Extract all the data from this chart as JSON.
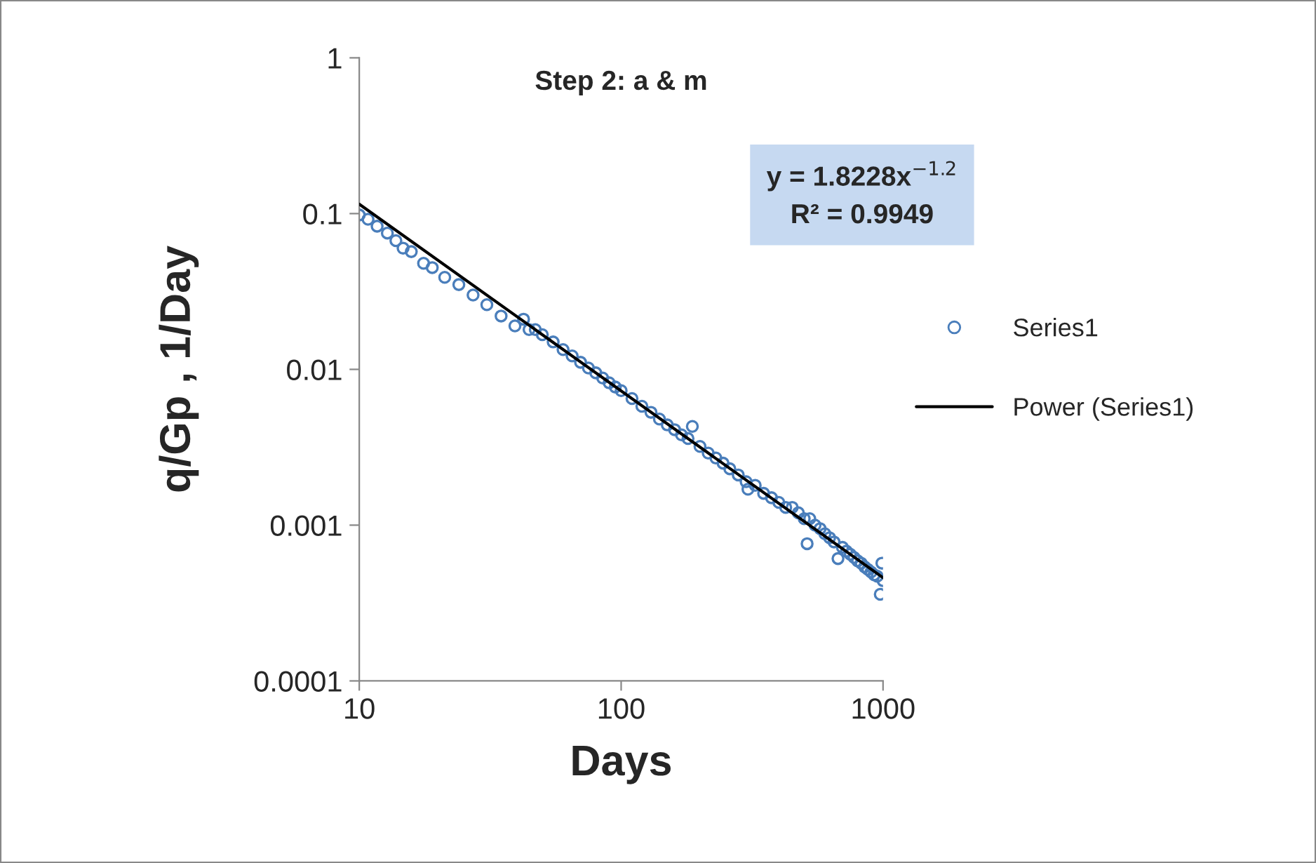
{
  "chart_data": {
    "type": "scatter",
    "title": "Step 2: a & m",
    "xlabel": "Days",
    "ylabel": "q/Gp , 1/Day",
    "log": "xy",
    "xlim": [
      10,
      1000
    ],
    "ylim": [
      0.0001,
      1
    ],
    "xticks": [
      10,
      100,
      1000
    ],
    "yticks": [
      0.0001,
      0.001,
      0.01,
      0.1,
      1
    ],
    "grid": false,
    "legend": "right",
    "annotations": [
      "y = 1.8228x$^{−1.2}$\nR² = 0.9949"
    ],
    "series": [
      {
        "name": "Series1",
        "marker": "circle",
        "color": "#4a7ebb",
        "x": [
          10,
          10.8,
          11.7,
          12.8,
          13.8,
          14.7,
          15.8,
          17.6,
          19,
          21.2,
          24,
          27.2,
          30.7,
          34.8,
          39.3,
          42.4,
          44.5,
          47,
          50,
          55,
          60,
          65,
          70,
          75,
          80,
          85,
          90,
          95,
          100,
          110,
          120,
          130,
          140,
          150,
          160,
          170,
          180,
          187,
          200,
          215,
          230,
          245,
          260,
          280,
          300,
          305,
          325,
          350,
          375,
          400,
          425,
          450,
          475,
          500,
          513,
          525,
          550,
          575,
          600,
          625,
          650,
          673,
          700,
          725,
          750,
          775,
          800,
          825,
          850,
          875,
          900,
          925,
          950,
          976,
          990,
          1000
        ],
        "values": [
          0.098,
          0.092,
          0.083,
          0.075,
          0.067,
          0.06,
          0.057,
          0.048,
          0.045,
          0.039,
          0.035,
          0.03,
          0.026,
          0.022,
          0.019,
          0.021,
          0.018,
          0.018,
          0.0167,
          0.015,
          0.0134,
          0.0122,
          0.0111,
          0.0102,
          0.0095,
          0.0088,
          0.0082,
          0.0077,
          0.0073,
          0.0065,
          0.0058,
          0.0053,
          0.0048,
          0.0044,
          0.0041,
          0.0038,
          0.0036,
          0.0043,
          0.0032,
          0.0029,
          0.0027,
          0.0025,
          0.0023,
          0.0021,
          0.0019,
          0.0017,
          0.0018,
          0.0016,
          0.0015,
          0.0014,
          0.0013,
          0.0013,
          0.0012,
          0.0011,
          0.00076,
          0.0011,
          0.001,
          0.00095,
          0.00088,
          0.00083,
          0.00078,
          0.00061,
          0.00072,
          0.00068,
          0.00065,
          0.00062,
          0.00059,
          0.00057,
          0.00054,
          0.00052,
          0.0005,
          0.00048,
          0.00047,
          0.00036,
          0.00057,
          0.00044
        ]
      },
      {
        "name": "Power (Series1)",
        "type": "line",
        "marker": "none",
        "line_style": "solid",
        "color": "#000000",
        "x": [
          10,
          1000
        ],
        "values": [
          0.115,
          0.00046
        ]
      }
    ]
  }
}
